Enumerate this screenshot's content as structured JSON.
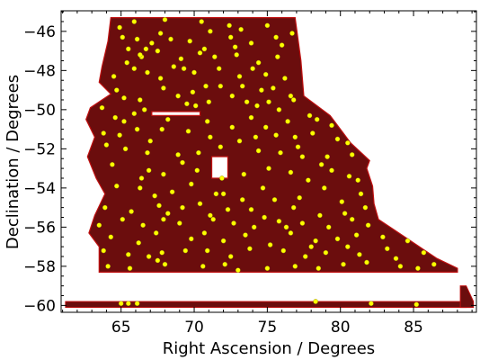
{
  "chart_data": {
    "type": "scatter",
    "title": "",
    "xlabel": "Right Ascension / Degrees",
    "ylabel": "Declination / Degrees",
    "xlim": [
      60.9,
      89.3
    ],
    "ylim": [
      -60.35,
      -44.95
    ],
    "xticks": [
      65,
      70,
      75,
      80,
      85
    ],
    "yticks": [
      -46,
      -48,
      -50,
      -52,
      -54,
      -56,
      -58,
      -60
    ],
    "footprint_color": "#6b0d0d",
    "footprint_edge_color": "#c01010",
    "point_color": "#ffff00",
    "point_edge_color": "#8a7a00",
    "footprint": {
      "outline": [
        [
          64.3,
          -45.3
        ],
        [
          76.9,
          -45.3
        ],
        [
          77.3,
          -47.5
        ],
        [
          77.5,
          -49.3
        ],
        [
          79.3,
          -50.3
        ],
        [
          80.7,
          -51.7
        ],
        [
          82.0,
          -52.6
        ],
        [
          81.8,
          -53.0
        ],
        [
          82.2,
          -53.9
        ],
        [
          82.3,
          -54.8
        ],
        [
          82.6,
          -55.6
        ],
        [
          84.8,
          -56.7
        ],
        [
          86.6,
          -57.6
        ],
        [
          88.0,
          -58.1
        ],
        [
          88.0,
          -58.3
        ],
        [
          63.5,
          -58.3
        ],
        [
          63.5,
          -57.0
        ],
        [
          62.8,
          -56.3
        ],
        [
          63.2,
          -55.4
        ],
        [
          63.9,
          -54.3
        ],
        [
          63.3,
          -53.5
        ],
        [
          62.7,
          -52.4
        ],
        [
          63.2,
          -51.4
        ],
        [
          62.6,
          -50.5
        ],
        [
          62.9,
          -49.9
        ],
        [
          64.3,
          -49.2
        ],
        [
          63.5,
          -48.6
        ],
        [
          63.7,
          -47.8
        ],
        [
          64.1,
          -46.5
        ]
      ],
      "strip": {
        "ra": [
          61.2,
          88.6
        ],
        "dec": [
          -59.8,
          -60.1
        ]
      },
      "strip_tail": [
        [
          88.2,
          -59.0
        ],
        [
          88.6,
          -59.0
        ],
        [
          89.1,
          -59.8
        ],
        [
          89.1,
          -60.1
        ],
        [
          88.2,
          -60.1
        ]
      ],
      "holes": [
        {
          "ra": [
            71.2,
            72.3
          ],
          "dec": [
            -53.5,
            -52.4
          ]
        },
        {
          "ra": [
            67.1,
            70.4
          ],
          "dec": [
            -50.3,
            -50.1
          ]
        }
      ]
    },
    "points": [
      [
        65.9,
        -45.5
      ],
      [
        68.0,
        -45.4
      ],
      [
        70.5,
        -45.5
      ],
      [
        72.4,
        -45.7
      ],
      [
        73.2,
        -45.9
      ],
      [
        75.0,
        -45.7
      ],
      [
        76.7,
        -46.1
      ],
      [
        64.9,
        -45.8
      ],
      [
        65.1,
        -46.3
      ],
      [
        65.5,
        -46.9
      ],
      [
        66.1,
        -46.4
      ],
      [
        66.7,
        -46.9
      ],
      [
        67.1,
        -46.6
      ],
      [
        67.7,
        -46.1
      ],
      [
        68.4,
        -46.4
      ],
      [
        69.7,
        -46.5
      ],
      [
        71.1,
        -46.0
      ],
      [
        72.5,
        -46.3
      ],
      [
        72.8,
        -46.8
      ],
      [
        73.9,
        -46.6
      ],
      [
        75.6,
        -46.3
      ],
      [
        65.4,
        -47.6
      ],
      [
        66.4,
        -47.3
      ],
      [
        67.5,
        -47.0
      ],
      [
        69.1,
        -47.4
      ],
      [
        70.4,
        -47.1
      ],
      [
        71.4,
        -47.3
      ],
      [
        72.9,
        -47.2
      ],
      [
        74.4,
        -47.6
      ],
      [
        75.7,
        -47.3
      ],
      [
        64.5,
        -48.3
      ],
      [
        65.9,
        -47.9
      ],
      [
        66.8,
        -48.1
      ],
      [
        67.7,
        -48.4
      ],
      [
        69.3,
        -47.9
      ],
      [
        70.0,
        -48.1
      ],
      [
        71.7,
        -47.9
      ],
      [
        73.1,
        -48.3
      ],
      [
        74.9,
        -48.2
      ],
      [
        76.2,
        -48.4
      ],
      [
        64.7,
        -49.0
      ],
      [
        65.2,
        -49.4
      ],
      [
        66.3,
        -49.5
      ],
      [
        67.9,
        -48.9
      ],
      [
        68.9,
        -49.3
      ],
      [
        69.9,
        -49.1
      ],
      [
        70.8,
        -48.8
      ],
      [
        71.8,
        -48.8
      ],
      [
        73.3,
        -48.8
      ],
      [
        74.6,
        -49.0
      ],
      [
        75.4,
        -48.9
      ],
      [
        76.6,
        -49.3
      ],
      [
        63.7,
        -49.9
      ],
      [
        65.9,
        -50.2
      ],
      [
        66.6,
        -50.0
      ],
      [
        70.1,
        -49.8
      ],
      [
        71.0,
        -49.6
      ],
      [
        73.6,
        -49.6
      ],
      [
        74.3,
        -49.8
      ],
      [
        75.8,
        -50.0
      ],
      [
        76.8,
        -49.5
      ],
      [
        64.6,
        -50.4
      ],
      [
        68.2,
        -50.5
      ],
      [
        73.9,
        -50.4
      ],
      [
        74.9,
        -50.9
      ],
      [
        76.4,
        -50.6
      ],
      [
        77.9,
        -50.3
      ],
      [
        78.4,
        -50.5
      ],
      [
        79.4,
        -50.8
      ],
      [
        63.8,
        -51.2
      ],
      [
        64.9,
        -51.3
      ],
      [
        66.1,
        -51.0
      ],
      [
        67.8,
        -51.0
      ],
      [
        69.6,
        -51.1
      ],
      [
        71.1,
        -51.4
      ],
      [
        73.1,
        -51.6
      ],
      [
        74.2,
        -51.4
      ],
      [
        75.6,
        -51.3
      ],
      [
        76.9,
        -51.4
      ],
      [
        78.1,
        -51.2
      ],
      [
        79.8,
        -51.5
      ],
      [
        80.5,
        -51.7
      ],
      [
        65.3,
        -52.0
      ],
      [
        66.8,
        -52.2
      ],
      [
        68.9,
        -52.3
      ],
      [
        70.3,
        -52.2
      ],
      [
        71.8,
        -51.9
      ],
      [
        74.4,
        -52.1
      ],
      [
        75.9,
        -52.2
      ],
      [
        77.4,
        -52.4
      ],
      [
        79.1,
        -52.4
      ],
      [
        80.8,
        -52.3
      ],
      [
        64.4,
        -52.8
      ],
      [
        66.9,
        -53.1
      ],
      [
        67.9,
        -53.3
      ],
      [
        70.2,
        -53.1
      ],
      [
        71.9,
        -53.5
      ],
      [
        73.4,
        -53.3
      ],
      [
        75.1,
        -53.0
      ],
      [
        76.6,
        -53.2
      ],
      [
        77.8,
        -53.6
      ],
      [
        79.4,
        -53.1
      ],
      [
        80.6,
        -53.4
      ],
      [
        64.7,
        -53.9
      ],
      [
        66.3,
        -54.0
      ],
      [
        67.3,
        -54.4
      ],
      [
        68.5,
        -54.2
      ],
      [
        71.5,
        -54.3
      ],
      [
        72.0,
        -54.3
      ],
      [
        73.3,
        -54.6
      ],
      [
        75.5,
        -54.6
      ],
      [
        78.9,
        -54.0
      ],
      [
        81.4,
        -54.3
      ],
      [
        63.9,
        -55.0
      ],
      [
        65.7,
        -55.2
      ],
      [
        67.6,
        -54.9
      ],
      [
        69.2,
        -55.0
      ],
      [
        70.4,
        -54.8
      ],
      [
        72.3,
        -55.1
      ],
      [
        73.9,
        -55.1
      ],
      [
        76.8,
        -55.0
      ],
      [
        78.6,
        -55.4
      ],
      [
        80.3,
        -55.3
      ],
      [
        81.7,
        -55.0
      ],
      [
        63.5,
        -55.9
      ],
      [
        65.1,
        -55.6
      ],
      [
        66.5,
        -55.9
      ],
      [
        67.9,
        -55.6
      ],
      [
        69.0,
        -55.8
      ],
      [
        71.3,
        -55.6
      ],
      [
        72.7,
        -55.8
      ],
      [
        74.1,
        -56.0
      ],
      [
        75.8,
        -55.7
      ],
      [
        77.4,
        -55.8
      ],
      [
        79.2,
        -56.0
      ],
      [
        80.8,
        -55.6
      ],
      [
        81.9,
        -55.9
      ],
      [
        64.3,
        -56.5
      ],
      [
        66.2,
        -56.8
      ],
      [
        67.4,
        -56.3
      ],
      [
        69.8,
        -56.6
      ],
      [
        70.7,
        -56.3
      ],
      [
        72.0,
        -56.7
      ],
      [
        73.5,
        -56.4
      ],
      [
        75.2,
        -56.9
      ],
      [
        76.6,
        -56.3
      ],
      [
        78.3,
        -56.7
      ],
      [
        79.8,
        -56.6
      ],
      [
        81.1,
        -56.4
      ],
      [
        82.9,
        -56.5
      ],
      [
        84.6,
        -56.7
      ],
      [
        63.8,
        -57.2
      ],
      [
        65.5,
        -57.4
      ],
      [
        67.8,
        -57.3
      ],
      [
        69.4,
        -57.2
      ],
      [
        70.9,
        -57.2
      ],
      [
        72.5,
        -57.5
      ],
      [
        73.8,
        -57.1
      ],
      [
        76.1,
        -57.2
      ],
      [
        77.6,
        -57.5
      ],
      [
        79.0,
        -57.3
      ],
      [
        81.3,
        -57.4
      ],
      [
        83.2,
        -57.1
      ],
      [
        85.7,
        -57.3
      ],
      [
        64.1,
        -58.0
      ],
      [
        65.6,
        -58.1
      ],
      [
        67.5,
        -57.7
      ],
      [
        68.0,
        -57.9
      ],
      [
        70.6,
        -58.0
      ],
      [
        72.1,
        -57.9
      ],
      [
        75.0,
        -58.1
      ],
      [
        76.9,
        -58.0
      ],
      [
        78.5,
        -58.1
      ],
      [
        80.2,
        -57.9
      ],
      [
        81.8,
        -57.8
      ],
      [
        84.1,
        -58.0
      ],
      [
        85.3,
        -58.1
      ],
      [
        86.4,
        -57.9
      ],
      [
        65.0,
        -59.9
      ],
      [
        65.5,
        -59.9
      ],
      [
        66.1,
        -59.9
      ],
      [
        78.3,
        -59.8
      ],
      [
        82.1,
        -59.9
      ],
      [
        85.2,
        -59.95
      ],
      [
        66.3,
        -47.2
      ],
      [
        68.6,
        -47.8
      ],
      [
        70.7,
        -46.9
      ],
      [
        74.0,
        -47.9
      ],
      [
        76.0,
        -46.7
      ],
      [
        69.5,
        -49.7
      ],
      [
        72.6,
        -49.3
      ],
      [
        75.1,
        -49.6
      ],
      [
        77.1,
        -51.9
      ],
      [
        78.7,
        -52.8
      ],
      [
        81.2,
        -53.6
      ],
      [
        66.4,
        -53.5
      ],
      [
        69.8,
        -53.8
      ],
      [
        74.7,
        -54.0
      ],
      [
        77.2,
        -54.5
      ],
      [
        80.1,
        -54.7
      ],
      [
        68.2,
        -55.3
      ],
      [
        71.1,
        -55.4
      ],
      [
        74.8,
        -55.5
      ],
      [
        76.3,
        -56.0
      ],
      [
        78.0,
        -57.0
      ],
      [
        80.5,
        -57.0
      ],
      [
        83.8,
        -57.6
      ],
      [
        66.9,
        -57.5
      ],
      [
        73.0,
        -58.2
      ],
      [
        65.2,
        -50.6
      ],
      [
        67.0,
        -51.6
      ],
      [
        70.9,
        -50.6
      ],
      [
        72.6,
        -50.9
      ],
      [
        64.0,
        -51.8
      ],
      [
        69.2,
        -52.7
      ]
    ]
  }
}
